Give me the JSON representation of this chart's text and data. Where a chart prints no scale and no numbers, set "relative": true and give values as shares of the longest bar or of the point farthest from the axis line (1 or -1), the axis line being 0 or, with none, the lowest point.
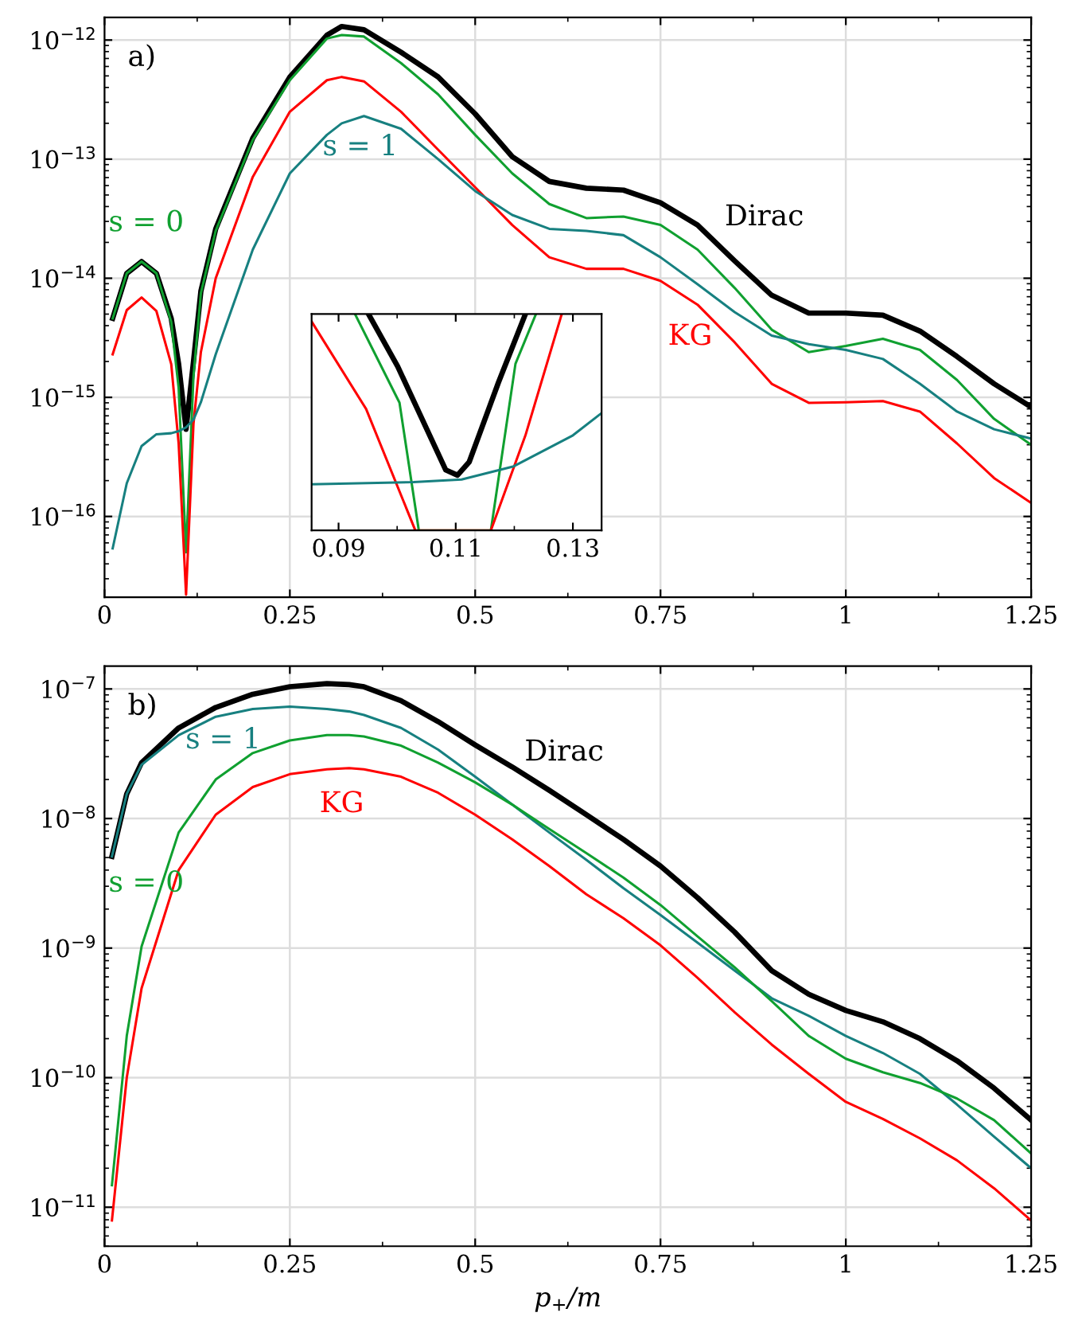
{
  "chart_data": [
    {
      "type": "line",
      "log": "y",
      "grid": true,
      "xlim": [
        0,
        1.25
      ],
      "xticks": [
        0,
        0.25,
        0.5,
        0.75,
        1,
        1.25
      ],
      "ylim": [
        2.1e-17,
        1.55e-12
      ],
      "yticks": [
        {
          "value": 1e-16,
          "label": "10$^{−16}$"
        },
        {
          "value": 1e-15,
          "label": "10$^{−15}$"
        },
        {
          "value": 1e-14,
          "label": "10$^{−14}$"
        },
        {
          "value": 1e-13,
          "label": "10$^{−13}$"
        },
        {
          "value": 1e-12,
          "label": "10$^{−12}$"
        }
      ],
      "x": [
        0.011,
        0.03,
        0.05,
        0.07,
        0.09,
        0.1,
        0.11,
        0.12,
        0.13,
        0.15,
        0.2,
        0.25,
        0.3,
        0.32,
        0.35,
        0.4,
        0.45,
        0.5,
        0.55,
        0.6,
        0.65,
        0.7,
        0.75,
        0.8,
        0.85,
        0.9,
        0.95,
        1.0,
        1.05,
        1.1,
        1.15,
        1.2,
        1.25
      ],
      "series": [
        {
          "name": "Dirac",
          "color": "#000000",
          "values": [
            4.6e-15,
            1.1e-14,
            1.38e-14,
            1.1e-14,
            4.6e-15,
            1.9e-15,
            5.4e-16,
            2e-15,
            7.8e-15,
            2.6e-14,
            1.5e-13,
            4.9e-13,
            1.1e-12,
            1.3e-12,
            1.22e-12,
            7.9e-13,
            4.9e-13,
            2.4e-13,
            1.05e-13,
            6.5e-14,
            5.7e-14,
            5.5e-14,
            4.3e-14,
            2.8e-14,
            1.4e-14,
            7.2e-15,
            5.1e-15,
            5.1e-15,
            4.9e-15,
            3.6e-15,
            2.2e-15,
            1.3e-15,
            8.3e-16
          ]
        },
        {
          "name": "s = 0",
          "color": "#10a030",
          "values": [
            4.6e-15,
            1.1e-14,
            1.38e-14,
            1.1e-14,
            4.3e-15,
            1.2e-15,
            5e-17,
            1.5e-15,
            7.5e-15,
            2.5e-14,
            1.45e-13,
            4.6e-13,
            1.03e-12,
            1.1e-12,
            1.07e-12,
            6.4e-13,
            3.5e-13,
            1.6e-13,
            7.6e-14,
            4.2e-14,
            3.2e-14,
            3.3e-14,
            2.8e-14,
            1.74e-14,
            8.3e-15,
            3.7e-15,
            2.4e-15,
            2.7e-15,
            3.1e-15,
            2.5e-15,
            1.4e-15,
            6.6e-16,
            4e-16
          ]
        },
        {
          "name": "KG",
          "color": "#ff0000",
          "values": [
            2.3e-15,
            5.4e-15,
            6.9e-15,
            5.3e-15,
            1.9e-15,
            4.1e-16,
            2.2e-17,
            6e-16,
            2.4e-15,
            1e-14,
            7.1e-14,
            2.5e-13,
            4.6e-13,
            4.9e-13,
            4.5e-13,
            2.5e-13,
            1.2e-13,
            5.8e-14,
            2.8e-14,
            1.5e-14,
            1.2e-14,
            1.2e-14,
            9.5e-15,
            6e-15,
            2.9e-15,
            1.3e-15,
            9e-16,
            9.1e-16,
            9.3e-16,
            7.6e-16,
            4.1e-16,
            2.1e-16,
            1.3e-16
          ]
        },
        {
          "name": "s = 1",
          "color": "#178080",
          "values": [
            5.4e-17,
            1.9e-16,
            3.9e-16,
            4.9e-16,
            5e-16,
            5.2e-16,
            5.6e-16,
            6.5e-16,
            9.1e-16,
            2.3e-15,
            1.74e-14,
            7.6e-14,
            1.6e-13,
            2e-13,
            2.3e-13,
            1.8e-13,
            1e-13,
            5.4e-14,
            3.4e-14,
            2.6e-14,
            2.5e-14,
            2.3e-14,
            1.5e-14,
            8.9e-15,
            5.2e-15,
            3.3e-15,
            2.8e-15,
            2.5e-15,
            2.1e-15,
            1.3e-15,
            7.6e-16,
            5.4e-16,
            4.5e-16
          ]
        }
      ],
      "annotations": [
        "a)"
      ]
    },
    {
      "type": "line",
      "relative": true,
      "xlim": [
        0.0854,
        0.1349
      ],
      "xticks": [
        0.09,
        0.11,
        0.13
      ],
      "series": [
        {
          "color": "#000000",
          "x": [
            0.0951,
            0.1001,
            0.1083,
            0.1103,
            0.1123,
            0.1173,
            0.1219
          ],
          "values": [
            1,
            0.757,
            0.279,
            0.255,
            0.316,
            0.684,
            1
          ]
        },
        {
          "color": "#10a030",
          "x": [
            0.0928,
            0.1004,
            0.1037,
            0.116,
            0.1202,
            0.1237
          ],
          "values": [
            1,
            0.59,
            0,
            0,
            0.77,
            1
          ]
        },
        {
          "color": "#ff0000",
          "x": [
            0.0854,
            0.0947,
            0.1031,
            0.116,
            0.1219,
            0.1281
          ],
          "values": [
            0.965,
            0.561,
            0,
            0,
            0.439,
            1
          ]
        },
        {
          "color": "#178080",
          "x": [
            0.0854,
            0.1028,
            0.111,
            0.1199,
            0.13,
            0.1349
          ],
          "values": [
            0.213,
            0.223,
            0.235,
            0.296,
            0.439,
            0.542
          ]
        }
      ]
    },
    {
      "type": "line",
      "log": "y",
      "grid": true,
      "xlabel": "p$_{+}$/m",
      "xlim": [
        0,
        1.25
      ],
      "xticks": [
        0,
        0.25,
        0.5,
        0.75,
        1,
        1.25
      ],
      "ylim": [
        5e-12,
        1.5e-07
      ],
      "yticks": [
        {
          "value": 1e-11,
          "label": "10$^{−11}$"
        },
        {
          "value": 1e-10,
          "label": "10$^{−10}$"
        },
        {
          "value": 1e-09,
          "label": "10$^{−9}$"
        },
        {
          "value": 1e-08,
          "label": "10$^{−8}$"
        },
        {
          "value": 1e-07,
          "label": "10$^{−7}$"
        }
      ],
      "x": [
        0.01,
        0.03,
        0.05,
        0.1,
        0.15,
        0.2,
        0.25,
        0.3,
        0.33,
        0.35,
        0.4,
        0.45,
        0.5,
        0.55,
        0.6,
        0.65,
        0.7,
        0.75,
        0.8,
        0.85,
        0.9,
        0.95,
        1.0,
        1.05,
        1.1,
        1.15,
        1.2,
        1.25
      ],
      "series": [
        {
          "name": "Dirac",
          "color": "#000000",
          "values": [
            5.1e-09,
            1.55e-08,
            2.7e-08,
            5e-08,
            7.2e-08,
            9.1e-08,
            1.04e-07,
            1.1e-07,
            1.08e-07,
            1.04e-07,
            8.1e-08,
            5.6e-08,
            3.7e-08,
            2.5e-08,
            1.65e-08,
            1.07e-08,
            6.9e-09,
            4.3e-09,
            2.45e-09,
            1.33e-09,
            6.7e-10,
            4.4e-10,
            3.3e-10,
            2.7e-10,
            2e-10,
            1.35e-10,
            8.3e-11,
            4.7e-11
          ]
        },
        {
          "name": "s = 1",
          "color": "#178080",
          "values": [
            5.1e-09,
            1.55e-08,
            2.6e-08,
            4.4e-08,
            6.1e-08,
            7e-08,
            7.3e-08,
            7e-08,
            6.7e-08,
            6.3e-08,
            5e-08,
            3.4e-08,
            2.1e-08,
            1.28e-08,
            7.8e-09,
            4.8e-09,
            2.9e-09,
            1.8e-09,
            1.1e-09,
            6.7e-10,
            4.1e-10,
            3e-10,
            2.1e-10,
            1.55e-10,
            1.07e-10,
            6.2e-11,
            3.5e-11,
            2e-11
          ]
        },
        {
          "name": "s = 0",
          "color": "#10a030",
          "values": [
            1.48e-11,
            2.1e-10,
            1.03e-09,
            7.8e-09,
            2e-08,
            3.2e-08,
            4e-08,
            4.4e-08,
            4.4e-08,
            4.3e-08,
            3.65e-08,
            2.7e-08,
            1.9e-08,
            1.28e-08,
            8.3e-09,
            5.4e-09,
            3.5e-09,
            2.15e-09,
            1.23e-09,
            7.1e-10,
            3.9e-10,
            2.1e-10,
            1.4e-10,
            1.1e-10,
            9.1e-11,
            6.9e-11,
            4.7e-11,
            2.6e-11
          ]
        },
        {
          "name": "KG",
          "color": "#ff0000",
          "values": [
            7.9e-12,
            1e-10,
            4.9e-10,
            4e-09,
            1.07e-08,
            1.75e-08,
            2.2e-08,
            2.4e-08,
            2.45e-08,
            2.4e-08,
            2.1e-08,
            1.58e-08,
            1.07e-08,
            6.9e-09,
            4.3e-09,
            2.6e-09,
            1.7e-09,
            1.05e-09,
            5.9e-10,
            3.2e-10,
            1.8e-10,
            1.07e-10,
            6.5e-11,
            4.8e-11,
            3.4e-11,
            2.3e-11,
            1.4e-11,
            7.9e-12
          ]
        }
      ],
      "annotations": [
        "b)"
      ]
    }
  ]
}
